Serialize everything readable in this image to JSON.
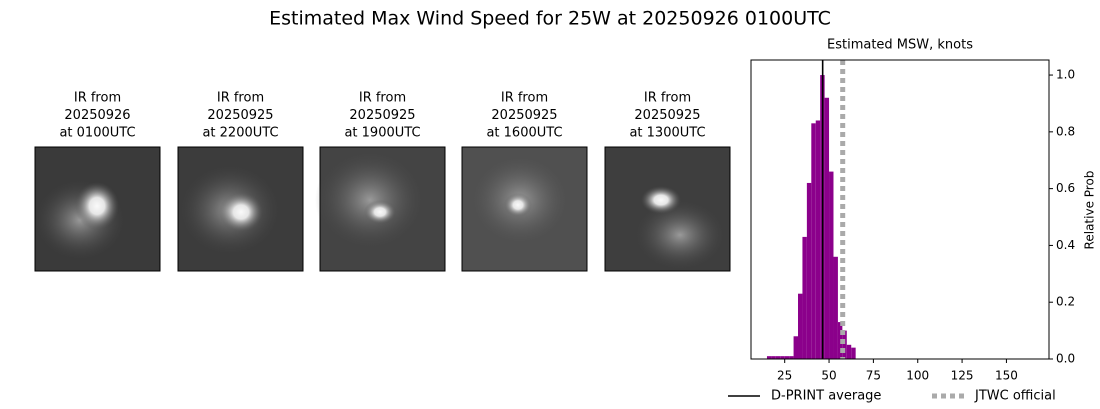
{
  "title": "Estimated Max Wind Speed for 25W at 20250926 0100UTC",
  "panels": [
    {
      "lines": [
        "IR from",
        "20250926",
        "at 0100UTC"
      ]
    },
    {
      "lines": [
        "IR from",
        "20250925",
        "at 2200UTC"
      ]
    },
    {
      "lines": [
        "IR from",
        "20250925",
        "at 1900UTC"
      ]
    },
    {
      "lines": [
        "IR from",
        "20250925",
        "at 1600UTC"
      ]
    },
    {
      "lines": [
        "IR from",
        "20250925",
        "at 1300UTC"
      ]
    }
  ],
  "chart_data": {
    "type": "histogram",
    "title": "Estimated MSW, knots",
    "ylabel": "Relative Prob",
    "bins": [
      15,
      17.5,
      20,
      22.5,
      25,
      27.5,
      30,
      32.5,
      35,
      37.5,
      40,
      42.5,
      45,
      47.5,
      50,
      52.5,
      55,
      57.5,
      60,
      62.5,
      65
    ],
    "values": [
      0.01,
      0.01,
      0.01,
      0.01,
      0.01,
      0.01,
      0.08,
      0.23,
      0.43,
      0.62,
      0.83,
      0.84,
      1.0,
      0.92,
      0.66,
      0.36,
      0.13,
      0.1,
      0.05,
      0.04
    ],
    "color": "#8b008b",
    "xlim": [
      6,
      174
    ],
    "ylim": [
      0,
      1.053
    ],
    "xticks": [
      25,
      50,
      75,
      100,
      125,
      150
    ],
    "yticks": [
      {
        "value": 0,
        "label": "0.0"
      },
      {
        "value": 0.2,
        "label": "0.2"
      },
      {
        "value": 0.4,
        "label": "0.4"
      },
      {
        "value": 0.6,
        "label": "0.6"
      },
      {
        "value": 0.8,
        "label": "0.8"
      },
      {
        "value": 1.0,
        "label": "1.0"
      }
    ],
    "lines": [
      {
        "name": "D-PRINT average",
        "value": 46.4,
        "color": "#000000",
        "style": "solid"
      },
      {
        "name": "JTWC official",
        "value": 57.7,
        "color": "#aaaaaa",
        "style": "dotted"
      }
    ],
    "legend": "below"
  }
}
